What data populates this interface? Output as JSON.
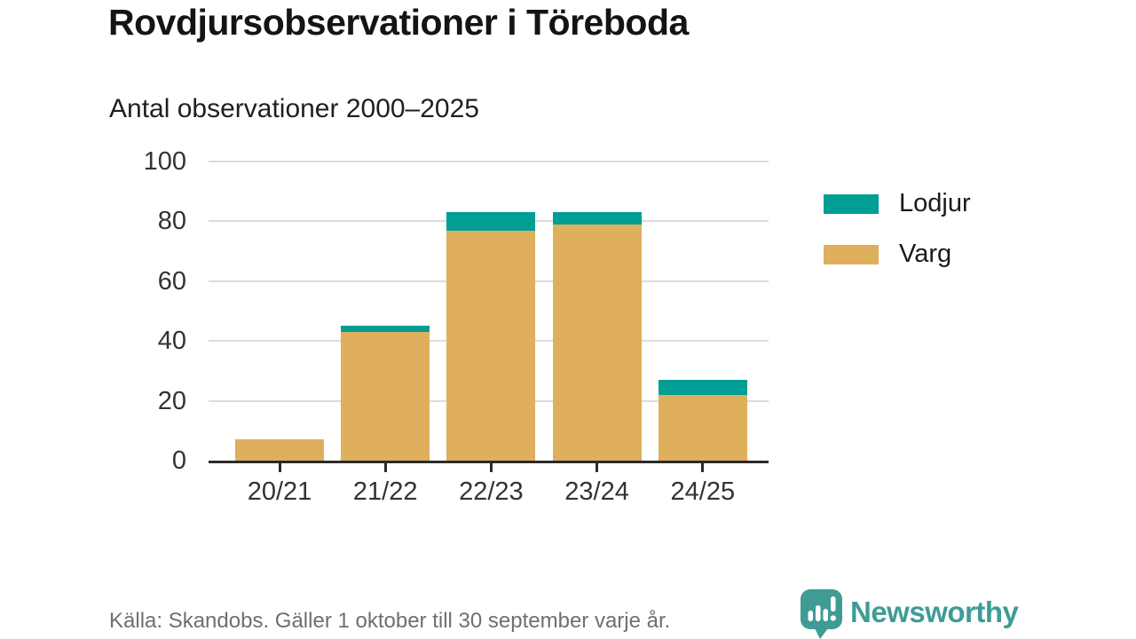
{
  "title": "Rovdjursobservationer i Töreboda",
  "subtitle": "Antal observationer 2000–2025",
  "footer": {
    "source_note": "Källa: Skandobs. Gäller 1 oktober till 30 september varje år."
  },
  "branding": {
    "name": "Newsworthy",
    "color": "#3e9c94",
    "icon": "speech-bubble-bar-chart-exclamation"
  },
  "colors": {
    "lodjur": "#009e94",
    "varg": "#dfaf5e",
    "gridline": "#dcdcdc",
    "axis": "#2b2b2b",
    "tick_text": "#333333"
  },
  "chart_data": {
    "type": "bar",
    "stacked": true,
    "title": "Rovdjursobservationer i Töreboda",
    "subtitle": "Antal observationer 2000–2025",
    "categories": [
      "20/21",
      "21/22",
      "22/23",
      "23/24",
      "24/25"
    ],
    "series": [
      {
        "name": "Varg",
        "color": "#dfaf5e",
        "values": [
          7,
          43,
          77,
          79,
          22
        ]
      },
      {
        "name": "Lodjur",
        "color": "#009e94",
        "values": [
          0,
          2,
          6,
          4,
          5
        ]
      }
    ],
    "xlabel": "",
    "ylabel": "",
    "ylim": [
      0,
      100
    ],
    "yticks": [
      0,
      20,
      40,
      60,
      80,
      100
    ],
    "grid": true,
    "legend": {
      "position": "right",
      "entries": [
        "Lodjur",
        "Varg"
      ]
    }
  }
}
